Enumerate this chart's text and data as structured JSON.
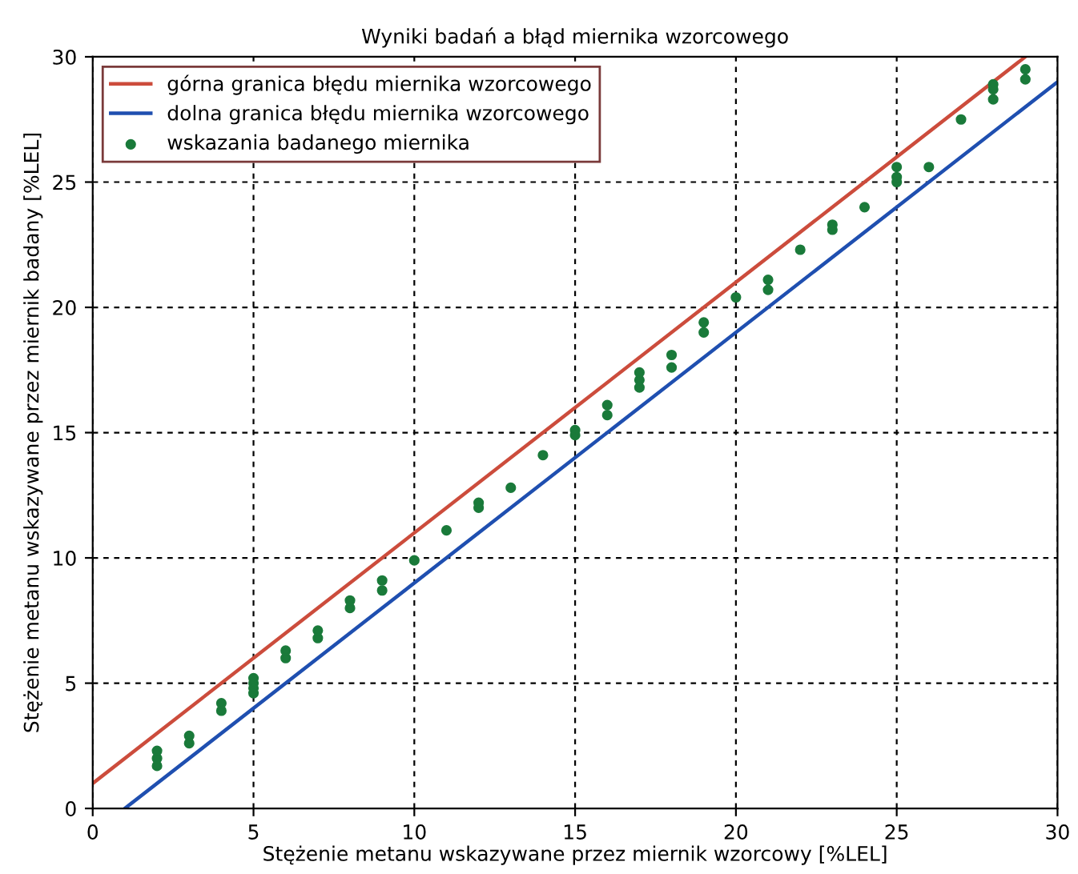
{
  "chart_data": {
    "type": "line",
    "title": "Wyniki badań a błąd miernika wzorcowego",
    "xlabel": "Stężenie metanu wskazywane przez miernik wzorcowy [%LEL]",
    "ylabel": "Stężenie metanu wskazywane przez miernik badany [%LEL]",
    "xlim": [
      0,
      30
    ],
    "ylim": [
      0,
      30
    ],
    "xticks": [
      0,
      5,
      10,
      15,
      20,
      25,
      30
    ],
    "yticks": [
      0,
      5,
      10,
      15,
      20,
      25,
      30
    ],
    "grid": true,
    "legend": "top left",
    "line_style": "solid",
    "series": [
      {
        "name": "górna granica błędu miernika wzorcowego",
        "color": "#cc4c3c",
        "x": [
          0,
          29
        ],
        "values": [
          1,
          30
        ]
      },
      {
        "name": "dolna granica błędu miernika wzorcowego",
        "color": "#1f4fb0",
        "x": [
          1,
          30
        ],
        "values": [
          0,
          29
        ]
      },
      {
        "name": "wskazania badanego miernika",
        "color": "#1a7a3a",
        "type": "scatter",
        "marker": "circle",
        "x": [
          2,
          2,
          2,
          3,
          3,
          4,
          4,
          5,
          5,
          5,
          5,
          6,
          6,
          7,
          7,
          8,
          8,
          9,
          9,
          10,
          11,
          12,
          12,
          13,
          14,
          15,
          15,
          16,
          16,
          17,
          17,
          17,
          18,
          18,
          19,
          19,
          20,
          21,
          21,
          22,
          23,
          23,
          24,
          25,
          25,
          25,
          26,
          27,
          28,
          28,
          28,
          29,
          29
        ],
        "values": [
          1.7,
          2.0,
          2.3,
          2.6,
          2.9,
          3.9,
          4.2,
          4.6,
          4.8,
          5.0,
          5.2,
          6.0,
          6.3,
          6.8,
          7.1,
          8.0,
          8.3,
          8.7,
          9.1,
          9.9,
          11.1,
          12.0,
          12.2,
          12.8,
          14.1,
          14.9,
          15.1,
          15.7,
          16.1,
          16.8,
          17.1,
          17.4,
          17.6,
          18.1,
          19.0,
          19.4,
          20.4,
          20.7,
          21.1,
          22.3,
          23.1,
          23.3,
          24.0,
          25.0,
          25.2,
          25.6,
          25.6,
          27.5,
          28.3,
          28.7,
          28.9,
          29.1,
          29.5
        ]
      }
    ]
  }
}
